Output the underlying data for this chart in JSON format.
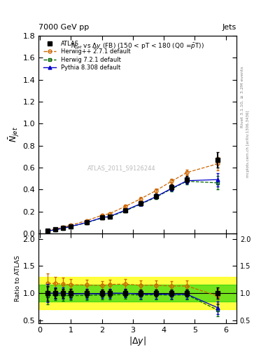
{
  "title_left": "7000 GeV pp",
  "title_right": "Jets",
  "plot_title": "$N_{jet}$ vs $\\Delta y$ (FB) (150 < pT < 180 (Q0 =$\\bar{p}$T))",
  "xlabel": "$|\\Delta y|$",
  "ylabel_main": "$\\bar{N}_{jet}$",
  "ylabel_ratio": "Ratio to ATLAS",
  "watermark": "ATLAS_2011_S9126244",
  "x_data": [
    0.25,
    0.5,
    0.75,
    1.0,
    1.5,
    2.0,
    2.25,
    2.75,
    3.25,
    3.75,
    4.25,
    4.75,
    5.75
  ],
  "atlas_y": [
    0.022,
    0.034,
    0.048,
    0.065,
    0.1,
    0.145,
    0.155,
    0.21,
    0.275,
    0.34,
    0.42,
    0.49,
    0.67
  ],
  "atlas_yerr": [
    0.003,
    0.003,
    0.004,
    0.005,
    0.007,
    0.009,
    0.01,
    0.013,
    0.017,
    0.022,
    0.027,
    0.033,
    0.07
  ],
  "herwigpp_y": [
    0.026,
    0.04,
    0.056,
    0.075,
    0.115,
    0.165,
    0.18,
    0.245,
    0.315,
    0.39,
    0.475,
    0.555,
    0.635
  ],
  "herwigpp_yerr": [
    0.002,
    0.002,
    0.003,
    0.003,
    0.005,
    0.007,
    0.008,
    0.01,
    0.013,
    0.017,
    0.022,
    0.028,
    0.06
  ],
  "herwig7_y": [
    0.021,
    0.033,
    0.046,
    0.062,
    0.096,
    0.14,
    0.15,
    0.205,
    0.265,
    0.33,
    0.405,
    0.475,
    0.46
  ],
  "herwig7_yerr": [
    0.002,
    0.002,
    0.003,
    0.003,
    0.005,
    0.007,
    0.008,
    0.01,
    0.013,
    0.017,
    0.022,
    0.028,
    0.06
  ],
  "pythia_y": [
    0.022,
    0.034,
    0.048,
    0.064,
    0.099,
    0.143,
    0.155,
    0.21,
    0.27,
    0.335,
    0.41,
    0.48,
    0.49
  ],
  "pythia_yerr": [
    0.002,
    0.002,
    0.003,
    0.003,
    0.005,
    0.007,
    0.008,
    0.01,
    0.013,
    0.017,
    0.022,
    0.028,
    0.06
  ],
  "color_atlas": "#000000",
  "color_herwigpp": "#cc6600",
  "color_herwig7": "#006600",
  "color_pythia": "#0000cc",
  "ylim_main": [
    0.0,
    1.8
  ],
  "ylim_ratio": [
    0.45,
    2.1
  ],
  "xlim": [
    -0.05,
    6.35
  ],
  "band_yellow": [
    0.7,
    1.3
  ],
  "band_green": [
    0.85,
    1.15
  ],
  "rivet_text": "Rivet 3.1.10, ≥ 3.2M events",
  "mcplots_text": "mcplots.cern.ch [arXiv:1306.3436]"
}
